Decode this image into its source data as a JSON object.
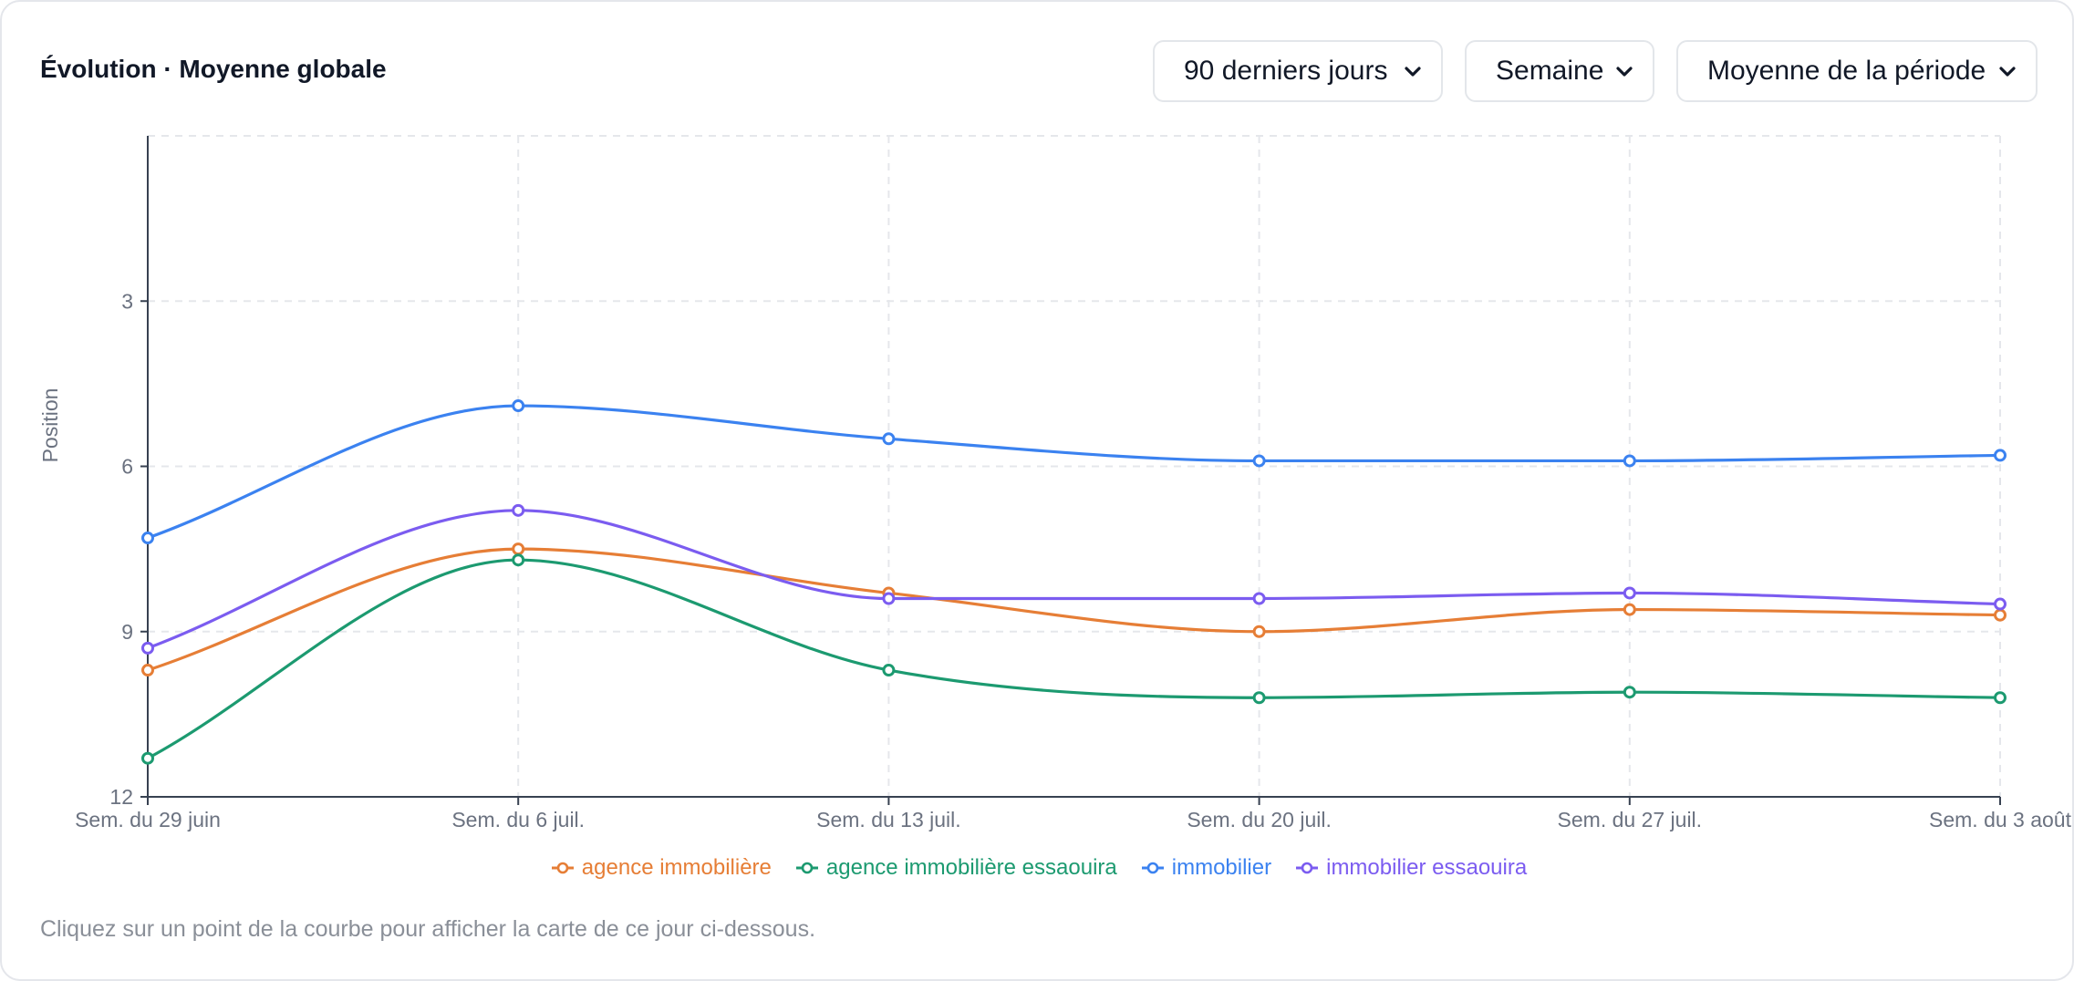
{
  "header": {
    "title": "Évolution · Moyenne globale"
  },
  "controls": {
    "period": "90 derniers jours",
    "granularity": "Semaine",
    "aggregation": "Moyenne de la période"
  },
  "colors": {
    "agence immobilière": "#e67e36",
    "agence immobilière essaouira": "#1c9a70",
    "immobilier": "#3b82f0",
    "immobilier essaouira": "#7b5cf0",
    "grid": "#e5e7eb",
    "axis": "#374151",
    "tick_text": "#6b7280"
  },
  "chart_data": {
    "type": "line",
    "xlabel": "",
    "ylabel": "Position",
    "y_inverted": true,
    "ylim": [
      0,
      12
    ],
    "yticks": [
      "3",
      "6",
      "9",
      "12"
    ],
    "categories": [
      "Sem. du 29 juin",
      "Sem. du 6 juil.",
      "Sem. du 13 juil.",
      "Sem. du 20 juil.",
      "Sem. du 27 juil.",
      "Sem. du 3 août"
    ],
    "series": [
      {
        "name": "agence immobilière",
        "values": [
          9.7,
          7.5,
          8.3,
          9.0,
          8.6,
          8.7
        ]
      },
      {
        "name": "agence immobilière essaouira",
        "values": [
          11.3,
          7.7,
          9.7,
          10.2,
          10.1,
          10.2
        ]
      },
      {
        "name": "immobilier",
        "values": [
          7.3,
          4.9,
          5.5,
          5.9,
          5.9,
          5.8
        ]
      },
      {
        "name": "immobilier essaouira",
        "values": [
          9.3,
          6.8,
          8.4,
          8.4,
          8.3,
          8.5
        ]
      }
    ],
    "grid": true,
    "legend_position": "bottom-center"
  },
  "footer": {
    "hint": "Cliquez sur un point de la courbe pour afficher la carte de ce jour ci-dessous."
  }
}
